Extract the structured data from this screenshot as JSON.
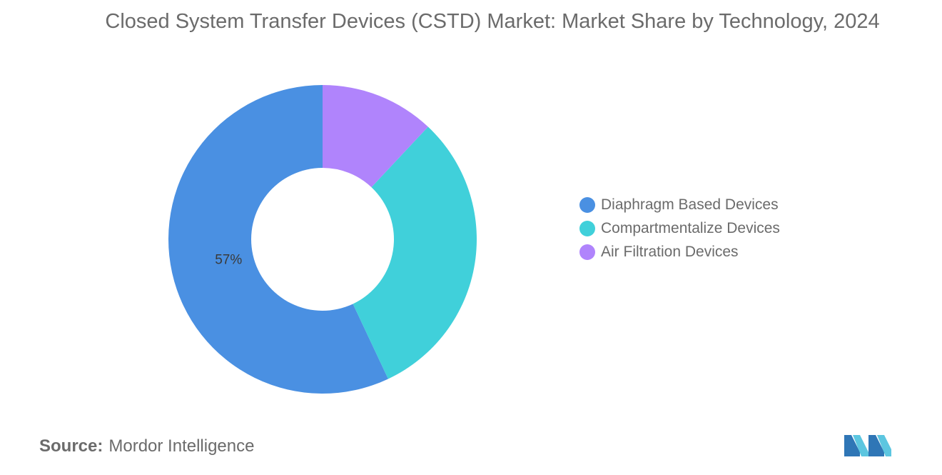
{
  "chart_data": {
    "type": "pie",
    "title": "Closed System Transfer Devices (CSTD) Market: Market Share by Technology, 2024",
    "donut": true,
    "categories": [
      "Diaphragm Based Devices",
      "Compartmentalize Devices",
      "Air Filtration Devices"
    ],
    "values": [
      57,
      31,
      12
    ],
    "colors": [
      "#4a90e2",
      "#40d0da",
      "#b084fc"
    ],
    "data_labels": [
      "57%",
      "",
      ""
    ],
    "legend_position": "right"
  },
  "source": {
    "label": "Source:",
    "value": "Mordor Intelligence"
  },
  "logo": {
    "icon": "mordor-intelligence-logo",
    "color": "#4a9fd8"
  }
}
